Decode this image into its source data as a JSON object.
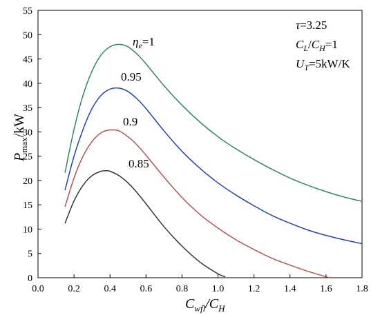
{
  "chart_data": {
    "type": "line",
    "xlabel": "C_wfl/C_H",
    "ylabel": "P_max/kW",
    "xlim": [
      0,
      1.8
    ],
    "ylim": [
      0,
      55
    ],
    "xticks": [
      0.0,
      0.2,
      0.4,
      0.6,
      0.8,
      1.0,
      1.2,
      1.4,
      1.6,
      1.8
    ],
    "xtick_labels": [
      "0.0",
      "0.2",
      "0.4",
      "0.6",
      "0.8",
      "1.0",
      "1.2",
      "1.4",
      "1.6",
      "1.8"
    ],
    "yticks": [
      0,
      5,
      10,
      15,
      20,
      25,
      30,
      35,
      40,
      45,
      50,
      55
    ],
    "ytick_labels": [
      "0",
      "5",
      "10",
      "15",
      "20",
      "25",
      "30",
      "35",
      "40",
      "45",
      "50",
      "55"
    ],
    "grid": false,
    "annotations": [
      "τ=3.25",
      "C_L/C_H=1",
      "U_T=5kW/K"
    ],
    "series": [
      {
        "name": "η_e=1",
        "color": "#2e8b57",
        "x": [
          0.15,
          0.2,
          0.25,
          0.3,
          0.35,
          0.4,
          0.45,
          0.5,
          0.55,
          0.6,
          0.7,
          0.8,
          0.9,
          1.0,
          1.1,
          1.2,
          1.3,
          1.4,
          1.5,
          1.6,
          1.7,
          1.8
        ],
        "y": [
          21.6,
          30.5,
          37.5,
          42.5,
          45.8,
          47.5,
          48.0,
          47.5,
          46.0,
          44.0,
          39.5,
          35.5,
          32.0,
          29.0,
          26.5,
          24.3,
          22.3,
          20.5,
          19.0,
          17.7,
          16.6,
          15.7
        ]
      },
      {
        "name": "0.95",
        "color": "#1f3fcc",
        "x": [
          0.15,
          0.2,
          0.25,
          0.3,
          0.35,
          0.4,
          0.45,
          0.5,
          0.55,
          0.6,
          0.7,
          0.8,
          0.9,
          1.0,
          1.1,
          1.2,
          1.3,
          1.4,
          1.5,
          1.6,
          1.7,
          1.8
        ],
        "y": [
          18.0,
          25.0,
          30.5,
          34.8,
          37.5,
          38.8,
          39.0,
          38.3,
          36.8,
          34.8,
          30.2,
          26.0,
          22.5,
          19.5,
          17.0,
          14.8,
          12.8,
          11.2,
          9.8,
          8.7,
          7.8,
          7.0
        ]
      },
      {
        "name": "0.9",
        "color": "#c0504d",
        "x": [
          0.15,
          0.2,
          0.25,
          0.3,
          0.35,
          0.4,
          0.45,
          0.5,
          0.55,
          0.6,
          0.7,
          0.8,
          0.9,
          1.0,
          1.1,
          1.2,
          1.3,
          1.4,
          1.5,
          1.6,
          1.62
        ],
        "y": [
          14.6,
          20.5,
          25.0,
          28.0,
          29.8,
          30.4,
          30.2,
          29.0,
          27.3,
          25.2,
          20.7,
          16.5,
          13.0,
          10.2,
          7.8,
          5.8,
          4.0,
          2.6,
          1.3,
          0.2,
          0.0
        ]
      },
      {
        "name": "0.85",
        "color": "#333333",
        "x": [
          0.15,
          0.2,
          0.25,
          0.3,
          0.35,
          0.38,
          0.4,
          0.45,
          0.5,
          0.55,
          0.6,
          0.7,
          0.8,
          0.9,
          1.0,
          1.04
        ],
        "y": [
          11.2,
          15.8,
          19.0,
          21.0,
          21.9,
          22.0,
          21.9,
          21.0,
          19.5,
          17.5,
          15.2,
          10.5,
          6.5,
          3.2,
          0.8,
          0.2
        ]
      }
    ]
  }
}
